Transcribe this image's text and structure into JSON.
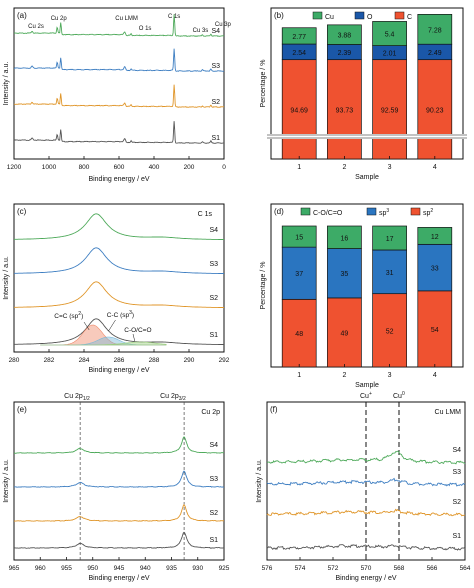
{
  "chart_data": [
    {
      "panel": "(a)",
      "type": "line",
      "xlabel": "Binding energy / eV",
      "ylabel": "Intensity / a.u.",
      "xlim": [
        1200,
        0
      ],
      "x_ticks": [
        "1200",
        "1000",
        "800",
        "600",
        "400",
        "200",
        "0"
      ],
      "annotations": [
        "Cu 2s",
        "Cu 2p",
        "Cu LMM",
        "O 1s",
        "C 1s",
        "Cu 3s",
        "Cu 3p"
      ],
      "series": [
        {
          "name": "S1",
          "color": "#555555"
        },
        {
          "name": "S2",
          "color": "#e0962a"
        },
        {
          "name": "S3",
          "color": "#3f7fc2"
        },
        {
          "name": "S4",
          "color": "#4faa5b"
        }
      ],
      "peaks_eV": {
        "Cu 2s": 1097,
        "Cu 2p": 933,
        "Cu LMM": 568,
        "O 1s": 531,
        "C 1s": 285,
        "Cu 3s": 123,
        "Cu 3p": 75
      }
    },
    {
      "panel": "(b)",
      "type": "bar",
      "stacked": true,
      "xlabel": "Sample",
      "ylabel": "Percentage / %",
      "categories": [
        "1",
        "2",
        "3",
        "4"
      ],
      "legend": [
        "Cu",
        "O",
        "C"
      ],
      "colors": {
        "Cu": "#3dab67",
        "O": "#1a57a8",
        "C": "#ef5230"
      },
      "series": [
        {
          "name": "C",
          "values": [
            94.69,
            93.73,
            92.59,
            90.23
          ]
        },
        {
          "name": "O",
          "values": [
            2.54,
            2.39,
            2.01,
            2.49
          ]
        },
        {
          "name": "Cu",
          "values": [
            2.77,
            3.88,
            5.4,
            7.28
          ]
        }
      ],
      "axis_break": true
    },
    {
      "panel": "(c)",
      "type": "line",
      "title": "C 1s",
      "xlabel": "Binding energy / eV",
      "ylabel": "Intensity / a.u.",
      "xlim": [
        280,
        292
      ],
      "x_ticks": [
        "280",
        "282",
        "284",
        "286",
        "288",
        "290",
        "292"
      ],
      "annotations": [
        "C=C (sp2)",
        "C-C (sp3)",
        "C-O/C=O"
      ],
      "series": [
        {
          "name": "S1",
          "color": "#555555"
        },
        {
          "name": "S2",
          "color": "#e0962a"
        },
        {
          "name": "S3",
          "color": "#3f7fc2"
        },
        {
          "name": "S4",
          "color": "#4faa5b"
        }
      ]
    },
    {
      "panel": "(d)",
      "type": "bar",
      "stacked": true,
      "xlabel": "Sample",
      "ylabel": "Percentage / %",
      "categories": [
        "1",
        "2",
        "3",
        "4"
      ],
      "legend": [
        "C-O/C=O",
        "sp3",
        "sp2"
      ],
      "colors": {
        "C-O/C=O": "#3dab67",
        "sp3": "#2a75c0",
        "sp2": "#ef5230"
      },
      "series": [
        {
          "name": "sp2",
          "values": [
            48,
            49,
            52,
            54
          ]
        },
        {
          "name": "sp3",
          "values": [
            37,
            35,
            31,
            33
          ]
        },
        {
          "name": "C-O/C=O",
          "values": [
            15,
            16,
            17,
            12
          ]
        }
      ]
    },
    {
      "panel": "(e)",
      "type": "line",
      "title": "Cu 2p",
      "xlabel": "Binding energy / eV",
      "ylabel": "Intensity / a.u.",
      "xlim": [
        965,
        925
      ],
      "x_ticks": [
        "965",
        "960",
        "955",
        "950",
        "945",
        "940",
        "935",
        "930",
        "925"
      ],
      "annotations": [
        "Cu 2p1/2",
        "Cu 2p3/2"
      ],
      "reference_lines_eV": [
        952.4,
        932.6
      ],
      "series": [
        {
          "name": "S1",
          "color": "#555555"
        },
        {
          "name": "S2",
          "color": "#e0962a"
        },
        {
          "name": "S3",
          "color": "#3f7fc2"
        },
        {
          "name": "S4",
          "color": "#4faa5b"
        }
      ]
    },
    {
      "panel": "(f)",
      "type": "line",
      "title": "Cu LMM",
      "xlabel": "Binding energy / eV",
      "ylabel": "Intensity / a.u.",
      "xlim": [
        576,
        564
      ],
      "x_ticks": [
        "576",
        "574",
        "572",
        "570",
        "568",
        "566",
        "564"
      ],
      "annotations": [
        "Cu+",
        "Cu0"
      ],
      "reference_lines_eV": [
        570.0,
        568.0
      ],
      "series": [
        {
          "name": "S1",
          "color": "#555555"
        },
        {
          "name": "S2",
          "color": "#e0962a"
        },
        {
          "name": "S3",
          "color": "#3f7fc2"
        },
        {
          "name": "S4",
          "color": "#4faa5b"
        }
      ]
    }
  ]
}
